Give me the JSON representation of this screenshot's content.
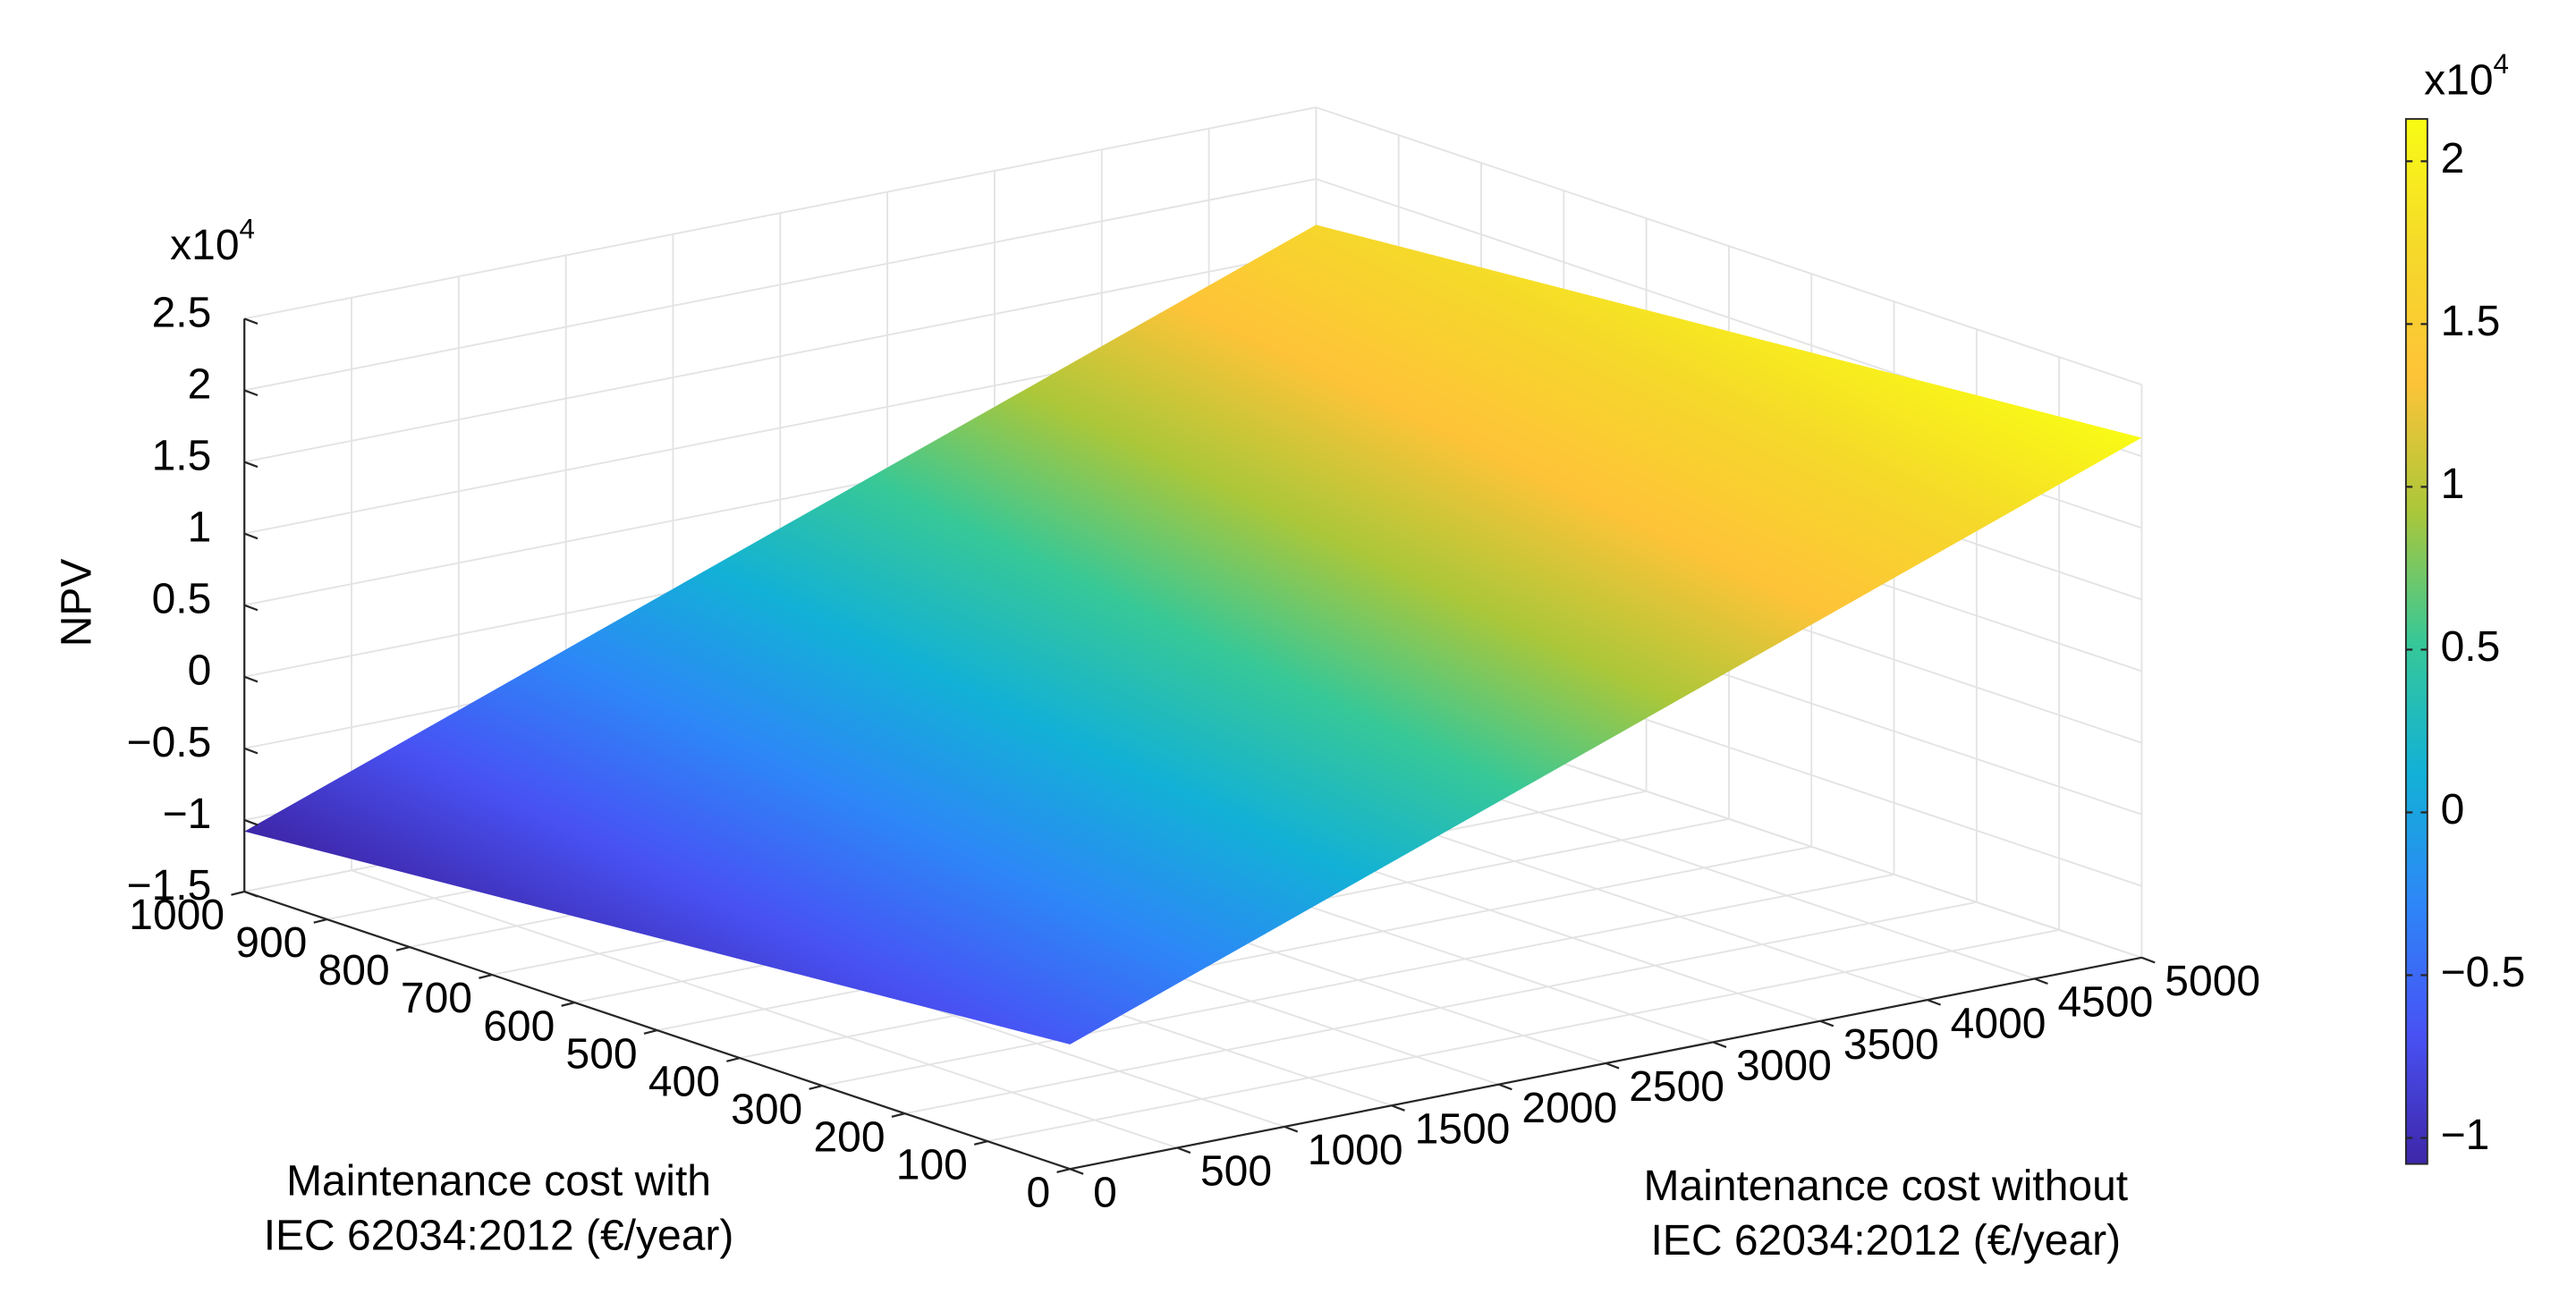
{
  "chart_data": {
    "type": "surface",
    "x_label": [
      "Maintenance cost without",
      "IEC 62034:2012 (€/year)"
    ],
    "y_label": [
      "Maintenance cost with",
      "IEC 62034:2012 (€/year)"
    ],
    "z_label": "NPV",
    "z_multiplier": {
      "base": "x10",
      "exponent": "4"
    },
    "x": [
      0,
      5000
    ],
    "y": [
      0,
      1000
    ],
    "z": [
      [
        -6300,
        21300
      ],
      [
        -10800,
        16800
      ]
    ],
    "xlim": [
      0,
      5000
    ],
    "xticks": [
      0,
      500,
      1000,
      1500,
      2000,
      2500,
      3000,
      3500,
      4000,
      4500,
      5000
    ],
    "ylim": [
      0,
      1000
    ],
    "yticks": [
      0,
      100,
      200,
      300,
      400,
      500,
      600,
      700,
      800,
      900,
      1000
    ],
    "zlim": [
      -15000,
      25000
    ],
    "zticks": [
      {
        "value": -15000,
        "label": "−1.5"
      },
      {
        "value": -10000,
        "label": "−1"
      },
      {
        "value": -5000,
        "label": "−0.5"
      },
      {
        "value": 0,
        "label": "0"
      },
      {
        "value": 5000,
        "label": "0.5"
      },
      {
        "value": 10000,
        "label": "1"
      },
      {
        "value": 15000,
        "label": "1.5"
      },
      {
        "value": 20000,
        "label": "2"
      },
      {
        "value": 25000,
        "label": "2.5"
      }
    ],
    "grid": true,
    "colormap": "parula",
    "colorbar": {
      "multiplier": {
        "base": "x10",
        "exponent": "4"
      },
      "ticks": [
        {
          "value": -10000,
          "label": "−1"
        },
        {
          "value": -5000,
          "label": "−0.5"
        },
        {
          "value": 0,
          "label": "0"
        },
        {
          "value": 5000,
          "label": "0.5"
        },
        {
          "value": 10000,
          "label": "1"
        },
        {
          "value": 15000,
          "label": "1.5"
        },
        {
          "value": 20000,
          "label": "2"
        }
      ]
    }
  }
}
